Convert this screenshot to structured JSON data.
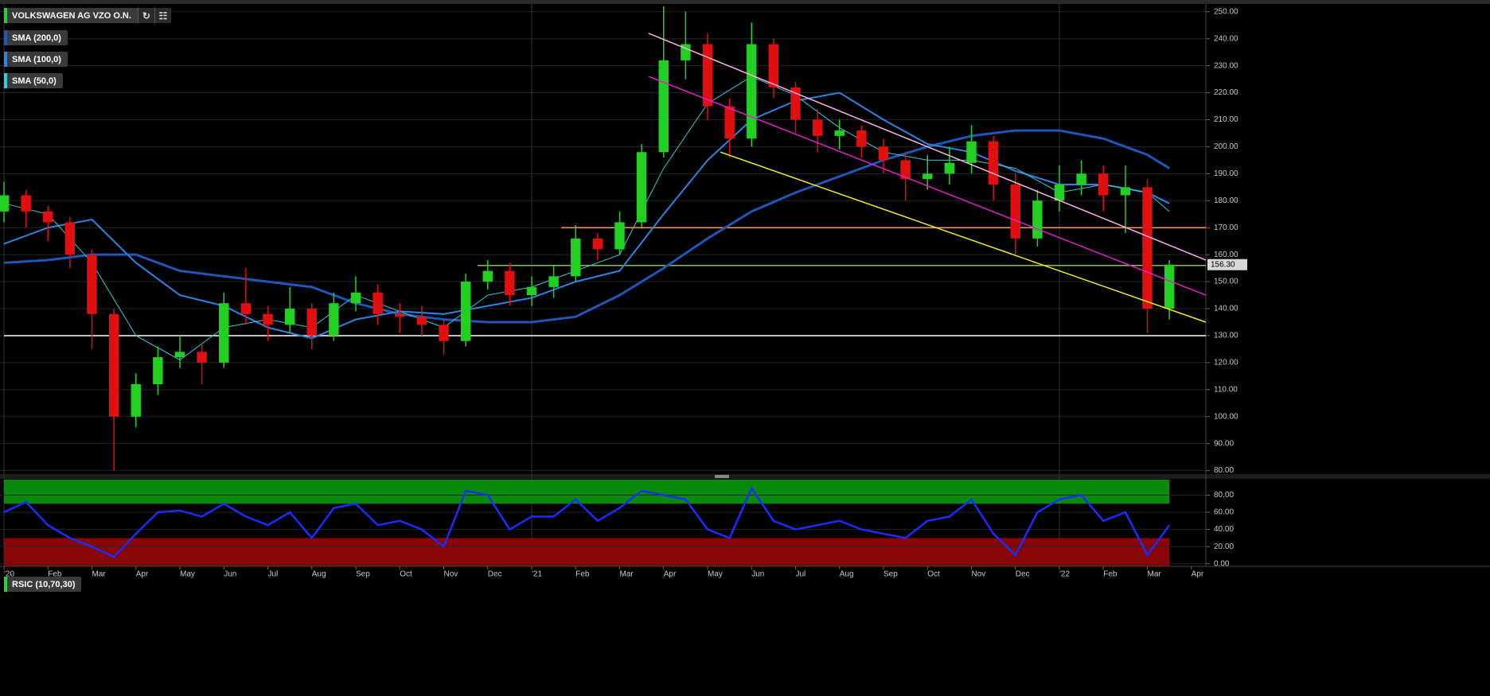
{
  "chart_data": [
    {
      "type": "candlestick",
      "title": "VOLKSWAGEN AG VZO O.N.",
      "title_color": "#2ecc40",
      "x": [
        0,
        0.5,
        1,
        1.5,
        2,
        2.5,
        3,
        3.5,
        4,
        4.5,
        5,
        5.5,
        6,
        6.5,
        7,
        7.5,
        8,
        8.5,
        9,
        9.5,
        10,
        10.5,
        11,
        11.5,
        12,
        12.5,
        13,
        13.5,
        14,
        14.5,
        15,
        15.5,
        16,
        16.5,
        17,
        17.5,
        18,
        18.5,
        19,
        19.5,
        20,
        20.5,
        21,
        21.5,
        22,
        22.5,
        23,
        23.5,
        24,
        24.5,
        25,
        25.5,
        26,
        26.5
      ],
      "open": [
        176,
        182,
        176,
        172,
        160,
        138,
        100,
        112,
        122,
        124,
        120,
        142,
        138,
        134,
        140,
        130,
        142,
        146,
        138,
        137,
        134,
        128,
        150,
        154,
        145,
        148,
        152,
        166,
        162,
        172,
        198,
        232,
        238,
        215,
        203,
        238,
        222,
        210,
        204,
        206,
        200,
        195,
        188,
        190,
        194,
        202,
        186,
        166,
        180,
        186,
        190,
        182,
        185,
        140
      ],
      "high": [
        187,
        184,
        178,
        174,
        162,
        140,
        116,
        126,
        130,
        127,
        146,
        155,
        141,
        148,
        142,
        146,
        152,
        149,
        142,
        141,
        136,
        153,
        158,
        157,
        152,
        156,
        171,
        168,
        176,
        201,
        252,
        250,
        242,
        218,
        246,
        240,
        224,
        214,
        210,
        208,
        203,
        198,
        197,
        200,
        208,
        204,
        190,
        184,
        193,
        195,
        193,
        193,
        188,
        158
      ],
      "low": [
        172,
        170,
        165,
        155,
        125,
        80,
        96,
        108,
        118,
        112,
        118,
        134,
        128,
        131,
        125,
        128,
        139,
        134,
        131,
        130,
        123,
        126,
        147,
        141,
        141,
        144,
        150,
        158,
        160,
        170,
        196,
        225,
        210,
        196,
        200,
        218,
        205,
        198,
        199,
        196,
        190,
        180,
        184,
        186,
        190,
        180,
        160,
        163,
        176,
        182,
        176,
        168,
        131,
        136
      ],
      "close": [
        182,
        176,
        172,
        160,
        138,
        100,
        112,
        122,
        124,
        120,
        142,
        138,
        134,
        140,
        130,
        142,
        146,
        138,
        137,
        134,
        128,
        150,
        154,
        145,
        148,
        152,
        166,
        162,
        172,
        198,
        232,
        238,
        215,
        203,
        238,
        222,
        210,
        204,
        206,
        200,
        195,
        188,
        190,
        194,
        202,
        186,
        166,
        180,
        186,
        190,
        182,
        185,
        140,
        156.3
      ],
      "color_up": "#22d022",
      "color_down": "#e01010",
      "last_price": {
        "value": 156.3,
        "label": "156.30"
      },
      "series": [
        {
          "name": "SMA (200,0)",
          "color": "#1f56b8",
          "width": 3,
          "x": [
            0,
            1,
            2,
            3,
            4,
            5,
            6,
            7,
            8,
            9,
            10,
            11,
            12,
            13,
            14,
            15,
            16,
            17,
            18,
            19,
            20,
            21,
            22,
            23,
            24,
            25,
            26,
            26.5
          ],
          "values": [
            157,
            158,
            160,
            160,
            154,
            152,
            150,
            148,
            142,
            138,
            136,
            135,
            135,
            137,
            145,
            155,
            166,
            176,
            183,
            189,
            195,
            200,
            204,
            206,
            206,
            203,
            197,
            192
          ]
        },
        {
          "name": "SMA (100,0)",
          "color": "#2d84e0",
          "width": 2,
          "x": [
            0,
            1,
            2,
            3,
            4,
            5,
            6,
            7,
            8,
            9,
            10,
            11,
            12,
            13,
            14,
            15,
            16,
            17,
            18,
            19,
            20,
            21,
            22,
            23,
            24,
            25,
            26,
            26.5
          ],
          "values": [
            164,
            170,
            173,
            157,
            145,
            141,
            133,
            129,
            136,
            139,
            138,
            141,
            144,
            150,
            154,
            175,
            195,
            210,
            217,
            220,
            210,
            201,
            198,
            191,
            186,
            186,
            183,
            179
          ]
        },
        {
          "name": "SMA (50,0)",
          "color": "#35c9dc",
          "width": 1,
          "x": [
            0,
            1,
            2,
            3,
            4,
            5,
            6,
            7,
            8,
            9,
            10,
            11,
            12,
            13,
            14,
            15,
            16,
            17,
            18,
            19,
            20,
            21,
            22,
            23,
            24,
            25,
            26,
            26.5
          ],
          "values": [
            179,
            175,
            157,
            130,
            121,
            133,
            136,
            133,
            145,
            139,
            133,
            145,
            148,
            154,
            160,
            192,
            216,
            226,
            219,
            207,
            198,
            195,
            195,
            192,
            183,
            186,
            183,
            176
          ]
        }
      ],
      "levels": [
        {
          "value": 170,
          "color": "#f0a040",
          "x0": 12.67
        },
        {
          "value": 156,
          "color": "#8ac040",
          "x0": 10.77
        },
        {
          "value": 130,
          "color": "#ffffff",
          "x0": 0
        }
      ],
      "trendlines": [
        {
          "color": "#ffb0e8",
          "x": [
            14.66,
            27.33
          ],
          "y": [
            242,
            158
          ]
        },
        {
          "color": "#e020c8",
          "x": [
            14.66,
            27.33
          ],
          "y": [
            226,
            145
          ]
        },
        {
          "color": "#f0f020",
          "x": [
            16.29,
            27.33
          ],
          "y": [
            198,
            135
          ]
        }
      ],
      "xlim": [
        0,
        27.33
      ],
      "xticks": [
        {
          "value": 0,
          "label": "'20"
        },
        {
          "value": 1,
          "label": "Feb"
        },
        {
          "value": 2,
          "label": "Mar"
        },
        {
          "value": 3,
          "label": "Apr"
        },
        {
          "value": 4,
          "label": "May"
        },
        {
          "value": 5,
          "label": "Jun"
        },
        {
          "value": 6,
          "label": "Jul"
        },
        {
          "value": 7,
          "label": "Aug"
        },
        {
          "value": 8,
          "label": "Sep"
        },
        {
          "value": 9,
          "label": "Oct"
        },
        {
          "value": 10,
          "label": "Nov"
        },
        {
          "value": 11,
          "label": "Dec"
        },
        {
          "value": 12,
          "label": "'21"
        },
        {
          "value": 13,
          "label": "Feb"
        },
        {
          "value": 14,
          "label": "Mar"
        },
        {
          "value": 15,
          "label": "Apr"
        },
        {
          "value": 16,
          "label": "May"
        },
        {
          "value": 17,
          "label": "Jun"
        },
        {
          "value": 18,
          "label": "Jul"
        },
        {
          "value": 19,
          "label": "Aug"
        },
        {
          "value": 20,
          "label": "Sep"
        },
        {
          "value": 21,
          "label": "Oct"
        },
        {
          "value": 22,
          "label": "Nov"
        },
        {
          "value": 23,
          "label": "Dec"
        },
        {
          "value": 24,
          "label": "'22"
        },
        {
          "value": 25,
          "label": "Feb"
        },
        {
          "value": 26,
          "label": "Mar"
        },
        {
          "value": 27,
          "label": "Apr"
        }
      ],
      "ylim": [
        79,
        252
      ],
      "yticks": [
        {
          "value": 80,
          "label": "80.00"
        },
        {
          "value": 90,
          "label": "90.00"
        },
        {
          "value": 100,
          "label": "100.00"
        },
        {
          "value": 110,
          "label": "110.00"
        },
        {
          "value": 120,
          "label": "120.00"
        },
        {
          "value": 130,
          "label": "130.00"
        },
        {
          "value": 140,
          "label": "140.00"
        },
        {
          "value": 150,
          "label": "150.00"
        },
        {
          "value": 160,
          "label": "160.00"
        },
        {
          "value": 170,
          "label": "170.00"
        },
        {
          "value": 180,
          "label": "180.00"
        },
        {
          "value": 190,
          "label": "190.00"
        },
        {
          "value": 200,
          "label": "200.00"
        },
        {
          "value": 210,
          "label": "210.00"
        },
        {
          "value": 220,
          "label": "220.00"
        },
        {
          "value": 230,
          "label": "230.00"
        },
        {
          "value": 240,
          "label": "240.00"
        },
        {
          "value": 250,
          "label": "250.00"
        }
      ],
      "grid": true
    },
    {
      "type": "line",
      "title": "RSIC (10,70,30)",
      "title_color": "#2ecc40",
      "color": "#1a2cff",
      "values": [
        60,
        72,
        45,
        30,
        20,
        8,
        35,
        60,
        62,
        55,
        70,
        55,
        45,
        60,
        30,
        65,
        70,
        45,
        50,
        40,
        20,
        85,
        80,
        40,
        55,
        55,
        75,
        50,
        65,
        85,
        80,
        75,
        40,
        30,
        88,
        50,
        40,
        45,
        50,
        40,
        35,
        30,
        50,
        55,
        75,
        35,
        10,
        60,
        75,
        80,
        50,
        60,
        10,
        45
      ],
      "overbought": 70,
      "oversold": 30,
      "overbought_color": "#0a8a0a",
      "oversold_color": "#8a0606",
      "ylim": [
        -3,
        98
      ],
      "yticks": [
        {
          "value": 0,
          "label": "0.00"
        },
        {
          "value": 20,
          "label": "20.00"
        },
        {
          "value": 40,
          "label": "40.00"
        },
        {
          "value": 60,
          "label": "60.00"
        },
        {
          "value": 80,
          "label": "80.00"
        }
      ],
      "grid": true
    }
  ]
}
